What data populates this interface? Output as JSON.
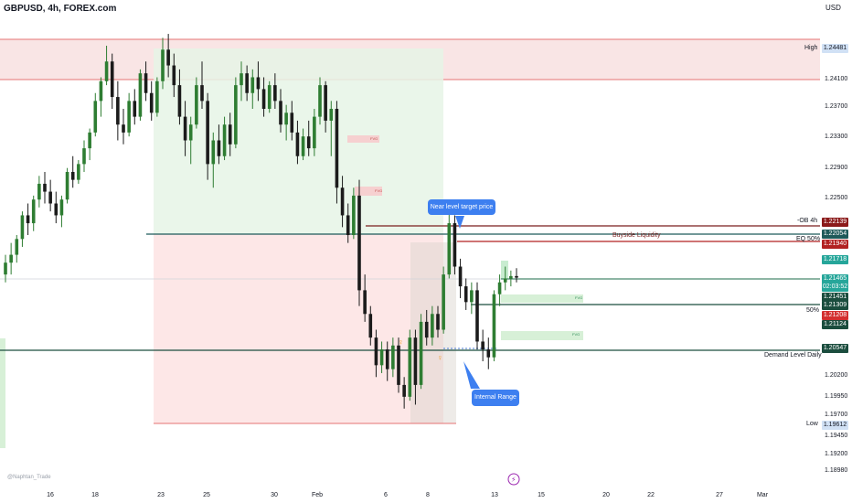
{
  "header": {
    "symbol": "GBPUSD, 4h, FOREX.com"
  },
  "currency": "USD",
  "watermark": "@Naphtan_Trade",
  "callouts": {
    "near_target": "Near level target price",
    "internal_range": "Internal Range"
  },
  "annotations": {
    "high": "High",
    "low": "Low",
    "ob_4h": "-OB 4h",
    "eq_50": "EQ 50%",
    "buyside": "Buyside Liquidity",
    "fifty": "50%",
    "demand": "Demand Level Daily",
    "fvg": "FVG"
  },
  "price_tags": [
    {
      "value": "1.24481",
      "bg": "#d1e1f5",
      "fg": "#131722"
    },
    {
      "value": "1.22139",
      "bg": "#8b1a1a",
      "fg": "#ffffff"
    },
    {
      "value": "1.22054",
      "bg": "#1e5a5a",
      "fg": "#ffffff"
    },
    {
      "value": "1.21940",
      "bg": "#b22222",
      "fg": "#ffffff"
    },
    {
      "value": "1.21718",
      "bg": "#26a69a",
      "fg": "#ffffff"
    },
    {
      "value": "1.21465",
      "bg": "#26a69a",
      "fg": "#ffffff"
    },
    {
      "value": "02:03:52",
      "bg": "#26a69a",
      "fg": "#ffffff"
    },
    {
      "value": "1.21451",
      "bg": "#1b4d3e",
      "fg": "#ffffff"
    },
    {
      "value": "1.21309",
      "bg": "#1b4d3e",
      "fg": "#ffffff"
    },
    {
      "value": "1.21208",
      "bg": "#d32f2f",
      "fg": "#ffffff"
    },
    {
      "value": "1.21124",
      "bg": "#1b4d3e",
      "fg": "#ffffff"
    },
    {
      "value": "1.20547",
      "bg": "#1b4d3e",
      "fg": "#ffffff"
    },
    {
      "value": "1.19612",
      "bg": "#d1e1f5",
      "fg": "#131722"
    }
  ],
  "chart_data": {
    "type": "candlestick",
    "title": "GBPUSD, 4h, FOREX.com",
    "y_ticks": [
      "1.24100",
      "1.23700",
      "1.23300",
      "1.22900",
      "1.22500",
      "1.20200",
      "1.19950",
      "1.19700",
      "1.19450",
      "1.19200",
      "1.18980"
    ],
    "x_ticks": [
      "16",
      "18",
      "23",
      "25",
      "30",
      "Feb",
      "6",
      "8",
      "13",
      "15",
      "20",
      "22",
      "27",
      "Mar"
    ],
    "levels": {
      "high": 1.24481,
      "ob_4h": 1.22139,
      "eq_50": 1.2194,
      "buyside_line": 1.22054,
      "current": 1.21465,
      "fifty": 1.21124,
      "demand": 1.20547,
      "low": 1.19612
    },
    "ohlc": [
      [
        1.215,
        1.2175,
        1.214,
        1.2165
      ],
      [
        1.2165,
        1.219,
        1.215,
        1.2175
      ],
      [
        1.2175,
        1.22,
        1.2165,
        1.2195
      ],
      [
        1.2195,
        1.223,
        1.2185,
        1.2225
      ],
      [
        1.2225,
        1.224,
        1.22,
        1.2215
      ],
      [
        1.2215,
        1.225,
        1.2205,
        1.2245
      ],
      [
        1.2245,
        1.2275,
        1.2235,
        1.2265
      ],
      [
        1.2265,
        1.228,
        1.224,
        1.2255
      ],
      [
        1.2255,
        1.227,
        1.223,
        1.224
      ],
      [
        1.224,
        1.2255,
        1.2215,
        1.2225
      ],
      [
        1.2225,
        1.225,
        1.221,
        1.2245
      ],
      [
        1.2245,
        1.2285,
        1.224,
        1.228
      ],
      [
        1.228,
        1.23,
        1.226,
        1.227
      ],
      [
        1.227,
        1.2295,
        1.2265,
        1.229
      ],
      [
        1.229,
        1.232,
        1.228,
        1.231
      ],
      [
        1.231,
        1.2335,
        1.2295,
        1.233
      ],
      [
        1.233,
        1.238,
        1.2325,
        1.237
      ],
      [
        1.237,
        1.24,
        1.235,
        1.2395
      ],
      [
        1.2395,
        1.244,
        1.239,
        1.242
      ],
      [
        1.242,
        1.243,
        1.236,
        1.2375
      ],
      [
        1.2375,
        1.2395,
        1.232,
        1.234
      ],
      [
        1.234,
        1.236,
        1.2315,
        1.233
      ],
      [
        1.233,
        1.238,
        1.2325,
        1.237
      ],
      [
        1.237,
        1.2385,
        1.234,
        1.235
      ],
      [
        1.235,
        1.241,
        1.2345,
        1.2405
      ],
      [
        1.2405,
        1.242,
        1.237,
        1.238
      ],
      [
        1.238,
        1.2395,
        1.2345,
        1.2355
      ],
      [
        1.2355,
        1.24,
        1.235,
        1.2395
      ],
      [
        1.2395,
        1.245,
        1.2385,
        1.2435
      ],
      [
        1.2435,
        1.2455,
        1.24,
        1.2415
      ],
      [
        1.2415,
        1.243,
        1.2375,
        1.239
      ],
      [
        1.239,
        1.241,
        1.234,
        1.235
      ],
      [
        1.235,
        1.237,
        1.23,
        1.232
      ],
      [
        1.232,
        1.235,
        1.229,
        1.234
      ],
      [
        1.234,
        1.24,
        1.2335,
        1.239
      ],
      [
        1.239,
        1.242,
        1.236,
        1.237
      ],
      [
        1.237,
        1.238,
        1.227,
        1.229
      ],
      [
        1.229,
        1.233,
        1.226,
        1.232
      ],
      [
        1.232,
        1.234,
        1.229,
        1.23
      ],
      [
        1.23,
        1.235,
        1.2295,
        1.234
      ],
      [
        1.234,
        1.2355,
        1.23,
        1.2315
      ],
      [
        1.2315,
        1.24,
        1.231,
        1.239
      ],
      [
        1.239,
        1.242,
        1.237,
        1.2405
      ],
      [
        1.2405,
        1.2415,
        1.237,
        1.238
      ],
      [
        1.238,
        1.241,
        1.236,
        1.24
      ],
      [
        1.24,
        1.242,
        1.237,
        1.2385
      ],
      [
        1.2385,
        1.24,
        1.235,
        1.236
      ],
      [
        1.236,
        1.2395,
        1.2355,
        1.239
      ],
      [
        1.239,
        1.2405,
        1.236,
        1.237
      ],
      [
        1.237,
        1.2385,
        1.233,
        1.234
      ],
      [
        1.234,
        1.2365,
        1.232,
        1.2355
      ],
      [
        1.2355,
        1.237,
        1.232,
        1.233
      ],
      [
        1.233,
        1.2345,
        1.229,
        1.23
      ],
      [
        1.23,
        1.2335,
        1.2295,
        1.2325
      ],
      [
        1.2325,
        1.2345,
        1.23,
        1.231
      ],
      [
        1.231,
        1.236,
        1.23,
        1.235
      ],
      [
        1.235,
        1.24,
        1.234,
        1.239
      ],
      [
        1.239,
        1.2395,
        1.233,
        1.2345
      ],
      [
        1.2345,
        1.237,
        1.23,
        1.236
      ],
      [
        1.236,
        1.237,
        1.224,
        1.226
      ],
      [
        1.226,
        1.2275,
        1.221,
        1.2225
      ],
      [
        1.2225,
        1.224,
        1.219,
        1.22
      ],
      [
        1.22,
        1.226,
        1.2195,
        1.225
      ],
      [
        1.225,
        1.227,
        1.211,
        1.213
      ],
      [
        1.213,
        1.215,
        1.209,
        1.21
      ],
      [
        1.21,
        1.211,
        1.206,
        1.207
      ],
      [
        1.207,
        1.208,
        1.202,
        1.2035
      ],
      [
        1.2035,
        1.2065,
        1.2025,
        1.2055
      ],
      [
        1.2055,
        1.2065,
        1.2015,
        1.203
      ],
      [
        1.203,
        1.207,
        1.202,
        1.206
      ],
      [
        1.206,
        1.207,
        1.2,
        1.201
      ],
      [
        1.201,
        1.202,
        1.198,
        1.1995
      ],
      [
        1.1995,
        1.208,
        1.199,
        1.207
      ],
      [
        1.207,
        1.208,
        1.1985,
        1.201
      ],
      [
        1.201,
        1.21,
        1.2005,
        1.209
      ],
      [
        1.209,
        1.2105,
        1.206,
        1.207
      ],
      [
        1.207,
        1.211,
        1.206,
        1.21
      ],
      [
        1.21,
        1.211,
        1.207,
        1.208
      ],
      [
        1.208,
        1.216,
        1.2075,
        1.215
      ],
      [
        1.215,
        1.223,
        1.2145,
        1.2215
      ],
      [
        1.2215,
        1.2225,
        1.215,
        1.216
      ],
      [
        1.216,
        1.217,
        1.212,
        1.2135
      ],
      [
        1.2135,
        1.2145,
        1.2105,
        1.2115
      ],
      [
        1.2115,
        1.214,
        1.21,
        1.213
      ],
      [
        1.213,
        1.214,
        1.2055,
        1.2065
      ],
      [
        1.2065,
        1.208,
        1.204,
        1.2055
      ],
      [
        1.2055,
        1.207,
        1.203,
        1.2045
      ],
      [
        1.2045,
        1.213,
        1.204,
        1.2125
      ],
      [
        1.2125,
        1.215,
        1.211,
        1.214
      ],
      [
        1.214,
        1.216,
        1.213,
        1.2145
      ],
      [
        1.2145,
        1.2155,
        1.2135,
        1.2148
      ],
      [
        1.2148,
        1.2158,
        1.214,
        1.2146
      ]
    ]
  }
}
